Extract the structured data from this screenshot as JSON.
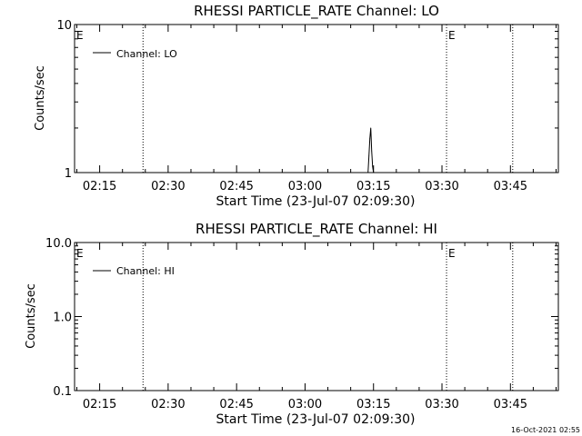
{
  "timestamp": "16-Oct-2021 02:55",
  "chart_data": [
    {
      "type": "line",
      "title": "RHESSI PARTICLE_RATE Channel: LO",
      "xlabel": "Start Time (23-Jul-07 02:09:30)",
      "ylabel": "Counts/sec",
      "yscale": "log",
      "ylim": [
        1,
        10
      ],
      "yticks": [
        {
          "v": 1,
          "label": "1"
        },
        {
          "v": 10,
          "label": "10"
        }
      ],
      "xlim": [
        9.5,
        115.5
      ],
      "xticks": [
        {
          "v": 15,
          "label": "02:15"
        },
        {
          "v": 30,
          "label": "02:30"
        },
        {
          "v": 45,
          "label": "02:45"
        },
        {
          "v": 60,
          "label": "03:00"
        },
        {
          "v": 75,
          "label": "03:15"
        },
        {
          "v": 90,
          "label": "03:30"
        },
        {
          "v": 105,
          "label": "03:45"
        }
      ],
      "vlines": [
        24.5,
        91,
        105.5
      ],
      "markers": [
        {
          "x": 9.5,
          "label": "E"
        },
        {
          "x": 91,
          "label": "E"
        }
      ],
      "legend": [
        "Channel: LO"
      ],
      "series": [
        {
          "name": "Channel: LO",
          "x": [
            73.8,
            74.0,
            74.2,
            74.4,
            74.6,
            74.8,
            75.0
          ],
          "values": [
            1,
            1.3,
            1.7,
            2.0,
            1.4,
            1.1,
            1
          ]
        }
      ]
    },
    {
      "type": "line",
      "title": "RHESSI PARTICLE_RATE Channel: HI",
      "xlabel": "Start Time (23-Jul-07 02:09:30)",
      "ylabel": "Counts/sec",
      "yscale": "log",
      "ylim": [
        0.1,
        10
      ],
      "yticks": [
        {
          "v": 0.1,
          "label": "0.1"
        },
        {
          "v": 1,
          "label": "1.0"
        },
        {
          "v": 10,
          "label": "10.0"
        }
      ],
      "xlim": [
        9.5,
        115.5
      ],
      "xticks": [
        {
          "v": 15,
          "label": "02:15"
        },
        {
          "v": 30,
          "label": "02:30"
        },
        {
          "v": 45,
          "label": "02:45"
        },
        {
          "v": 60,
          "label": "03:00"
        },
        {
          "v": 75,
          "label": "03:15"
        },
        {
          "v": 90,
          "label": "03:30"
        },
        {
          "v": 105,
          "label": "03:45"
        }
      ],
      "vlines": [
        24.5,
        91,
        105.5
      ],
      "markers": [
        {
          "x": 9.5,
          "label": "E"
        },
        {
          "x": 91,
          "label": "E"
        }
      ],
      "legend": [
        "Channel: HI"
      ],
      "series": [
        {
          "name": "Channel: HI",
          "x": [],
          "values": []
        }
      ]
    }
  ]
}
